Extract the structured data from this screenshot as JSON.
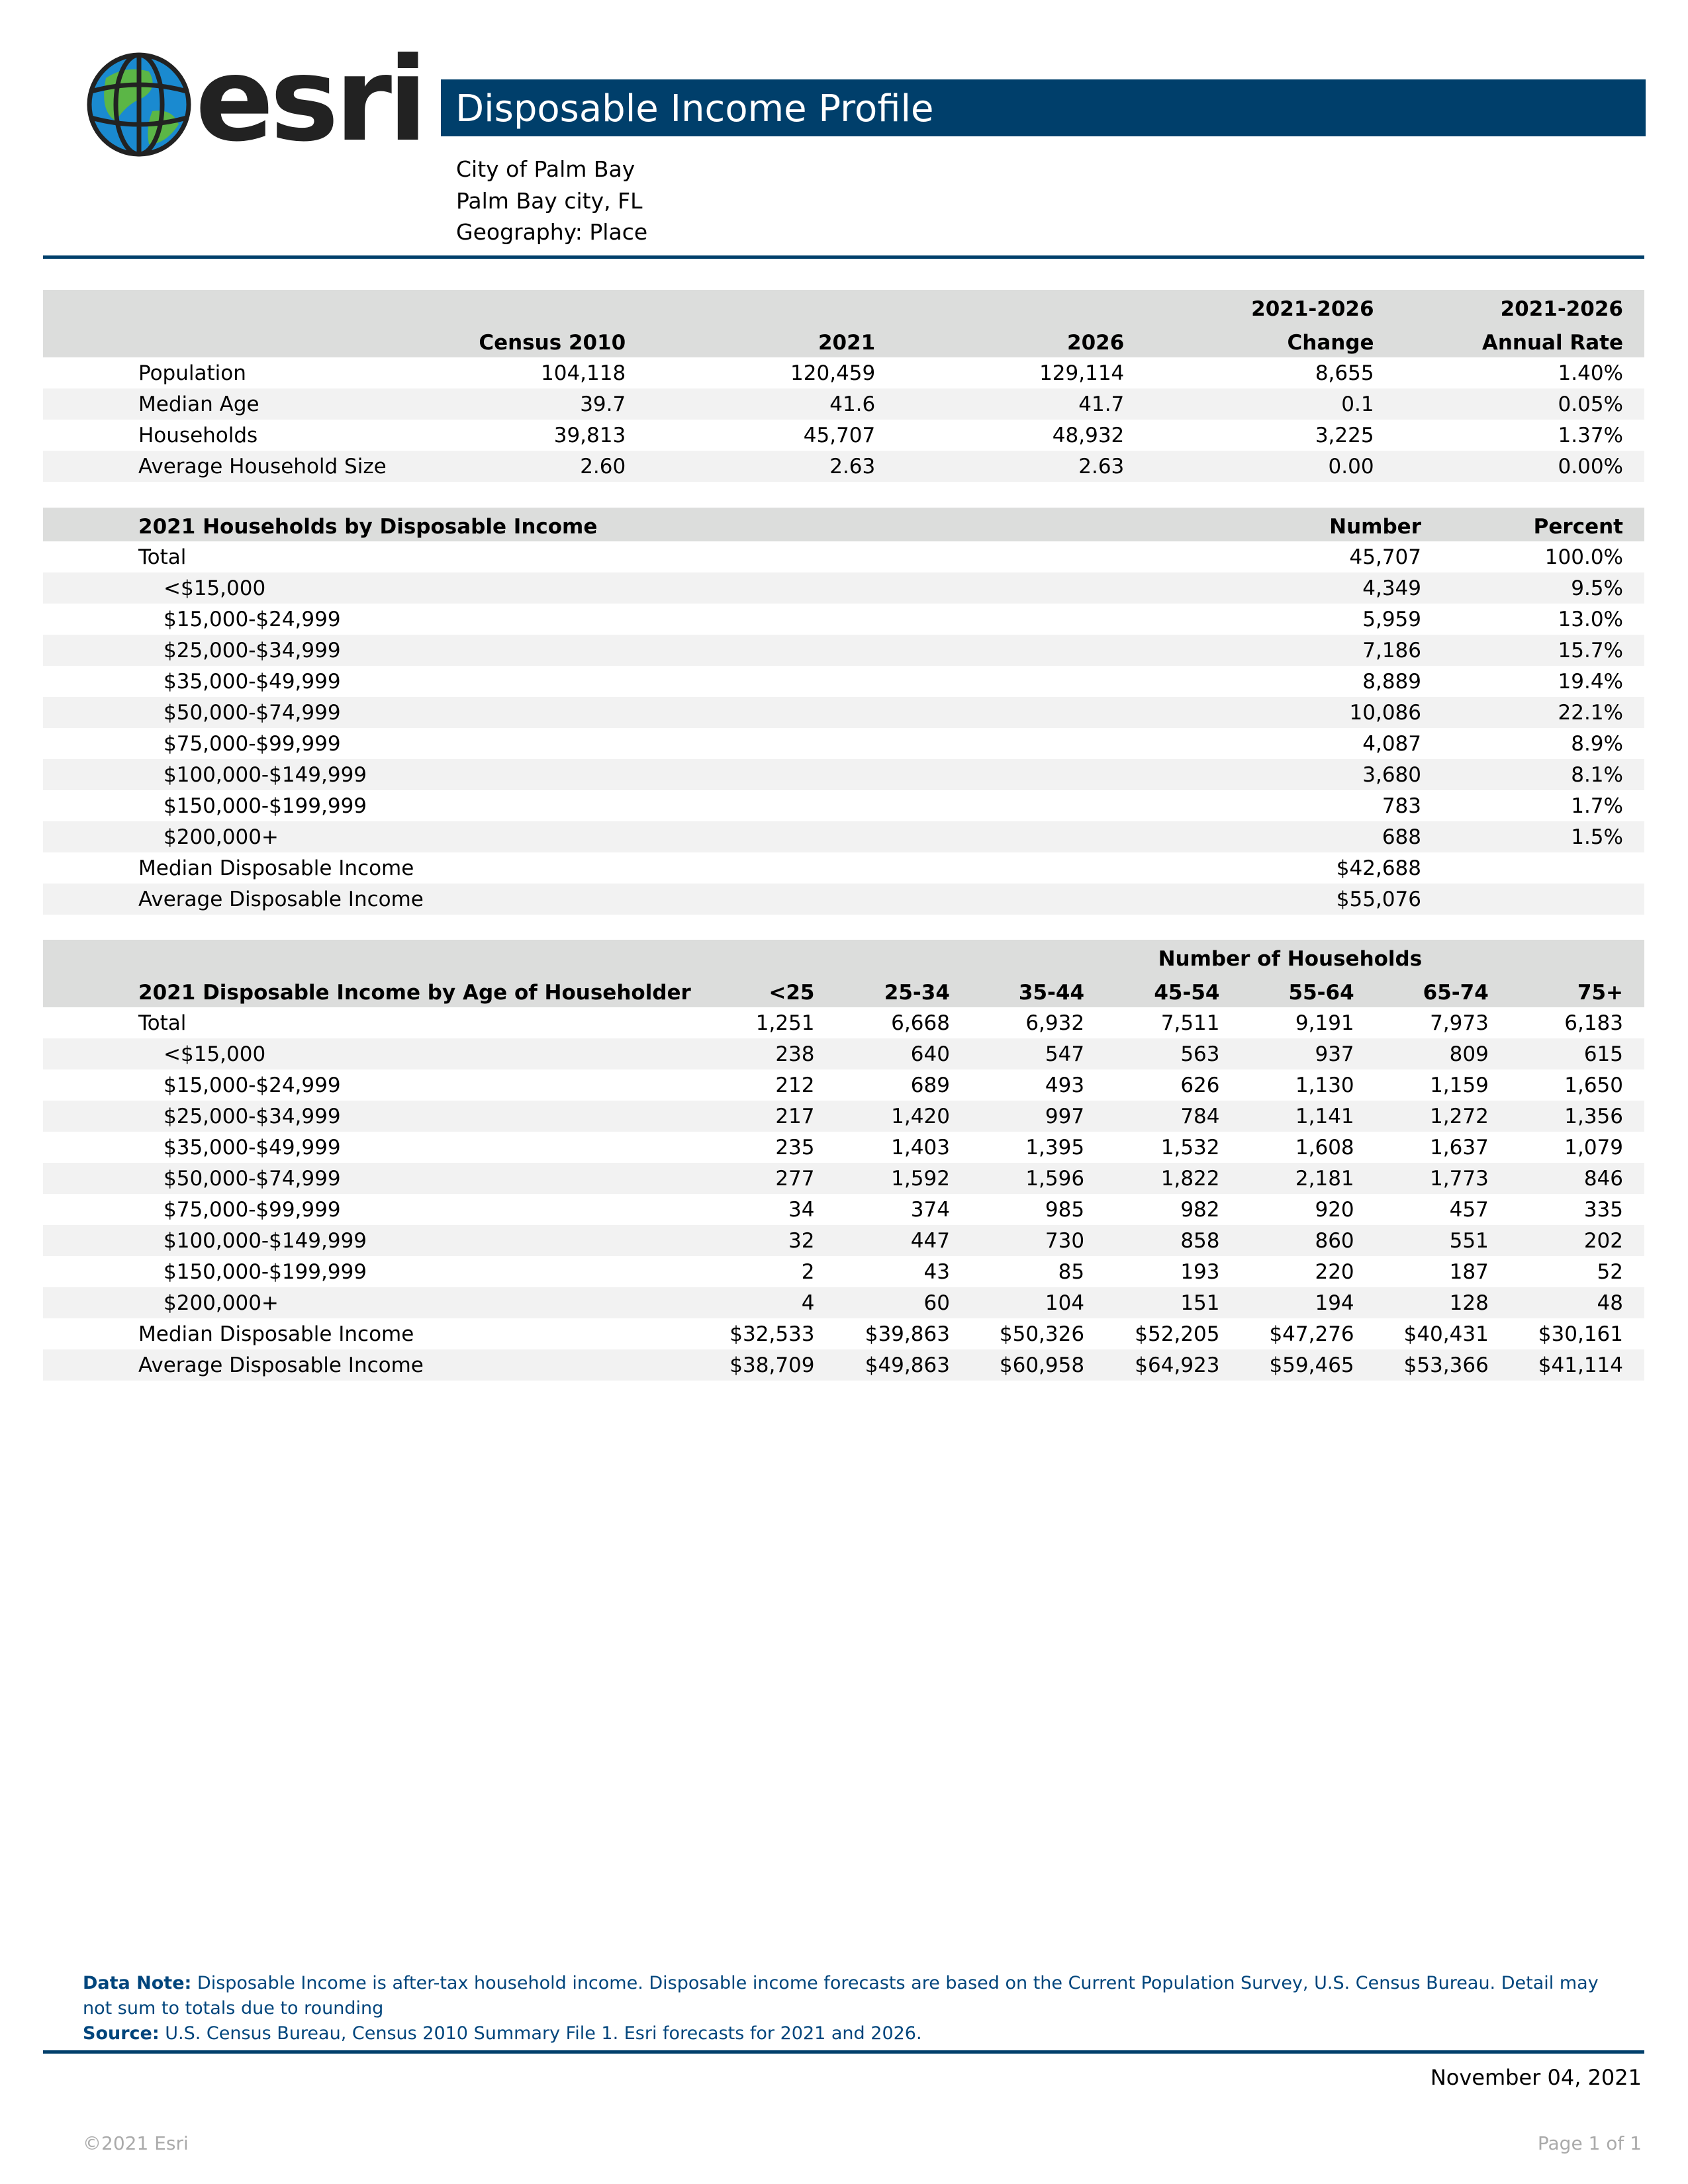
{
  "logo": {
    "text": "esri"
  },
  "header": {
    "title": "Disposable Income Profile",
    "lines": [
      "City of Palm Bay",
      "Palm Bay city, FL",
      "Geography: Place"
    ]
  },
  "summary": {
    "header_top": [
      "",
      "",
      "",
      "",
      "2021-2026",
      "2021-2026"
    ],
    "header": [
      "",
      "Census 2010",
      "2021",
      "2026",
      "Change",
      "Annual Rate"
    ],
    "rows": [
      [
        "Population",
        "104,118",
        "120,459",
        "129,114",
        "8,655",
        "1.40%"
      ],
      [
        "Median Age",
        "39.7",
        "41.6",
        "41.7",
        "0.1",
        "0.05%"
      ],
      [
        "Households",
        "39,813",
        "45,707",
        "48,932",
        "3,225",
        "1.37%"
      ],
      [
        "Average Household Size",
        "2.60",
        "2.63",
        "2.63",
        "0.00",
        "0.00%"
      ]
    ]
  },
  "income": {
    "header": [
      "2021 Households by Disposable Income",
      "Number",
      "Percent"
    ],
    "rows": [
      [
        "Total",
        "45,707",
        "100.0%"
      ],
      [
        "<$15,000",
        "4,349",
        "9.5%"
      ],
      [
        "$15,000-$24,999",
        "5,959",
        "13.0%"
      ],
      [
        "$25,000-$34,999",
        "7,186",
        "15.7%"
      ],
      [
        "$35,000-$49,999",
        "8,889",
        "19.4%"
      ],
      [
        "$50,000-$74,999",
        "10,086",
        "22.1%"
      ],
      [
        "$75,000-$99,999",
        "4,087",
        "8.9%"
      ],
      [
        "$100,000-$149,999",
        "3,680",
        "8.1%"
      ],
      [
        "$150,000-$199,999",
        "783",
        "1.7%"
      ],
      [
        "$200,000+",
        "688",
        "1.5%"
      ],
      [
        "Median Disposable Income",
        "$42,688",
        ""
      ],
      [
        "Average Disposable Income",
        "$55,076",
        ""
      ]
    ]
  },
  "age": {
    "group_label": "Number of Households",
    "header": [
      "2021 Disposable Income by Age of Householder",
      "<25",
      "25-34",
      "35-44",
      "45-54",
      "55-64",
      "65-74",
      "75+"
    ],
    "rows": [
      [
        "Total",
        "1,251",
        "6,668",
        "6,932",
        "7,511",
        "9,191",
        "7,973",
        "6,183"
      ],
      [
        "<$15,000",
        "238",
        "640",
        "547",
        "563",
        "937",
        "809",
        "615"
      ],
      [
        "$15,000-$24,999",
        "212",
        "689",
        "493",
        "626",
        "1,130",
        "1,159",
        "1,650"
      ],
      [
        "$25,000-$34,999",
        "217",
        "1,420",
        "997",
        "784",
        "1,141",
        "1,272",
        "1,356"
      ],
      [
        "$35,000-$49,999",
        "235",
        "1,403",
        "1,395",
        "1,532",
        "1,608",
        "1,637",
        "1,079"
      ],
      [
        "$50,000-$74,999",
        "277",
        "1,592",
        "1,596",
        "1,822",
        "2,181",
        "1,773",
        "846"
      ],
      [
        "$75,000-$99,999",
        "34",
        "374",
        "985",
        "982",
        "920",
        "457",
        "335"
      ],
      [
        "$100,000-$149,999",
        "32",
        "447",
        "730",
        "858",
        "860",
        "551",
        "202"
      ],
      [
        "$150,000-$199,999",
        "2",
        "43",
        "85",
        "193",
        "220",
        "187",
        "52"
      ],
      [
        "$200,000+",
        "4",
        "60",
        "104",
        "151",
        "194",
        "128",
        "48"
      ],
      [
        "Median Disposable Income",
        "$32,533",
        "$39,863",
        "$50,326",
        "$52,205",
        "$47,276",
        "$40,431",
        "$30,161"
      ],
      [
        "Average Disposable Income",
        "$38,709",
        "$49,863",
        "$60,958",
        "$64,923",
        "$59,465",
        "$53,366",
        "$41,114"
      ]
    ]
  },
  "notes": {
    "data_note_label": "Data Note:",
    "data_note": " Disposable Income is after-tax household income. Disposable income forecasts are based on the Current Population Survey, U.S. Census Bureau. Detail may not sum to totals due to rounding",
    "source_label": "Source:",
    "source": " U.S. Census Bureau, Census 2010 Summary File 1. Esri forecasts for 2021 and 2026."
  },
  "footer": {
    "date": "November 04, 2021",
    "copyright": "©2021 Esri",
    "page": "Page 1 of 1"
  },
  "colors": {
    "brand": "#003f6b",
    "header_bg": "#dcdddc",
    "alt_row": "#f2f2f2",
    "note": "#00457c"
  }
}
